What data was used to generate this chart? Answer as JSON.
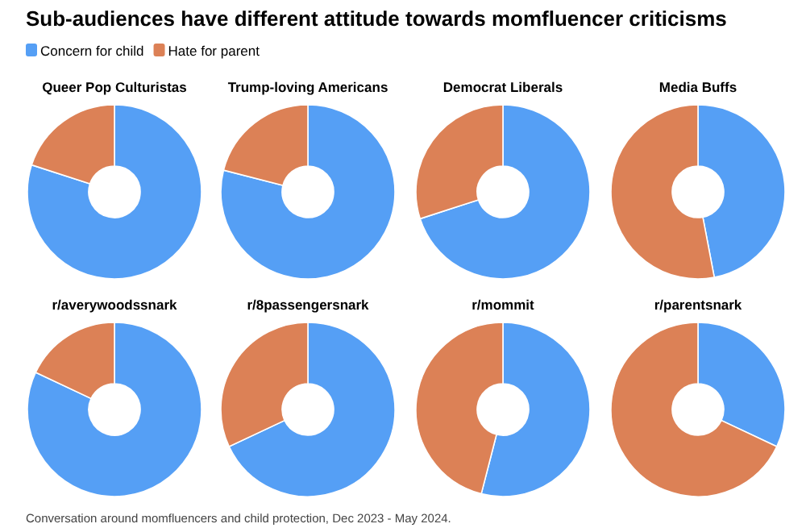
{
  "chart_data": [
    {
      "type": "other",
      "title": "Sub-audiences have different attitude towards momfluencer criticisms",
      "annotations": [
        "Conversation around momfluencers and child protection, Dec 2023 - May 2024."
      ]
    },
    {
      "type": "donut",
      "title": "Queer Pop Culturistas",
      "categories": [
        "Concern for child",
        "Hate for parent"
      ],
      "values": [
        80,
        20
      ],
      "colors": [
        "#559ff5",
        "#dc8156"
      ],
      "legend": "top"
    },
    {
      "type": "donut",
      "title": "Trump-loving Americans",
      "values": [
        79,
        21
      ],
      "colors": [
        "#559ff5",
        "#dc8156"
      ]
    },
    {
      "type": "donut",
      "title": "Democrat Liberals",
      "values": [
        70,
        30
      ],
      "colors": [
        "#559ff5",
        "#dc8156"
      ]
    },
    {
      "type": "donut",
      "title": "Media Buffs",
      "values": [
        47,
        53
      ],
      "colors": [
        "#559ff5",
        "#dc8156"
      ]
    },
    {
      "type": "donut",
      "title": "r/averywoodssnark",
      "values": [
        82,
        18
      ],
      "colors": [
        "#559ff5",
        "#dc8156"
      ]
    },
    {
      "type": "donut",
      "title": "r/8passengersnark",
      "values": [
        68,
        32
      ],
      "colors": [
        "#559ff5",
        "#dc8156"
      ]
    },
    {
      "type": "donut",
      "title": "r/mommit",
      "values": [
        54,
        46
      ],
      "colors": [
        "#559ff5",
        "#dc8156"
      ]
    },
    {
      "type": "donut",
      "title": "r/parentsnark",
      "values": [
        32,
        68
      ],
      "colors": [
        "#559ff5",
        "#dc8156"
      ]
    }
  ]
}
